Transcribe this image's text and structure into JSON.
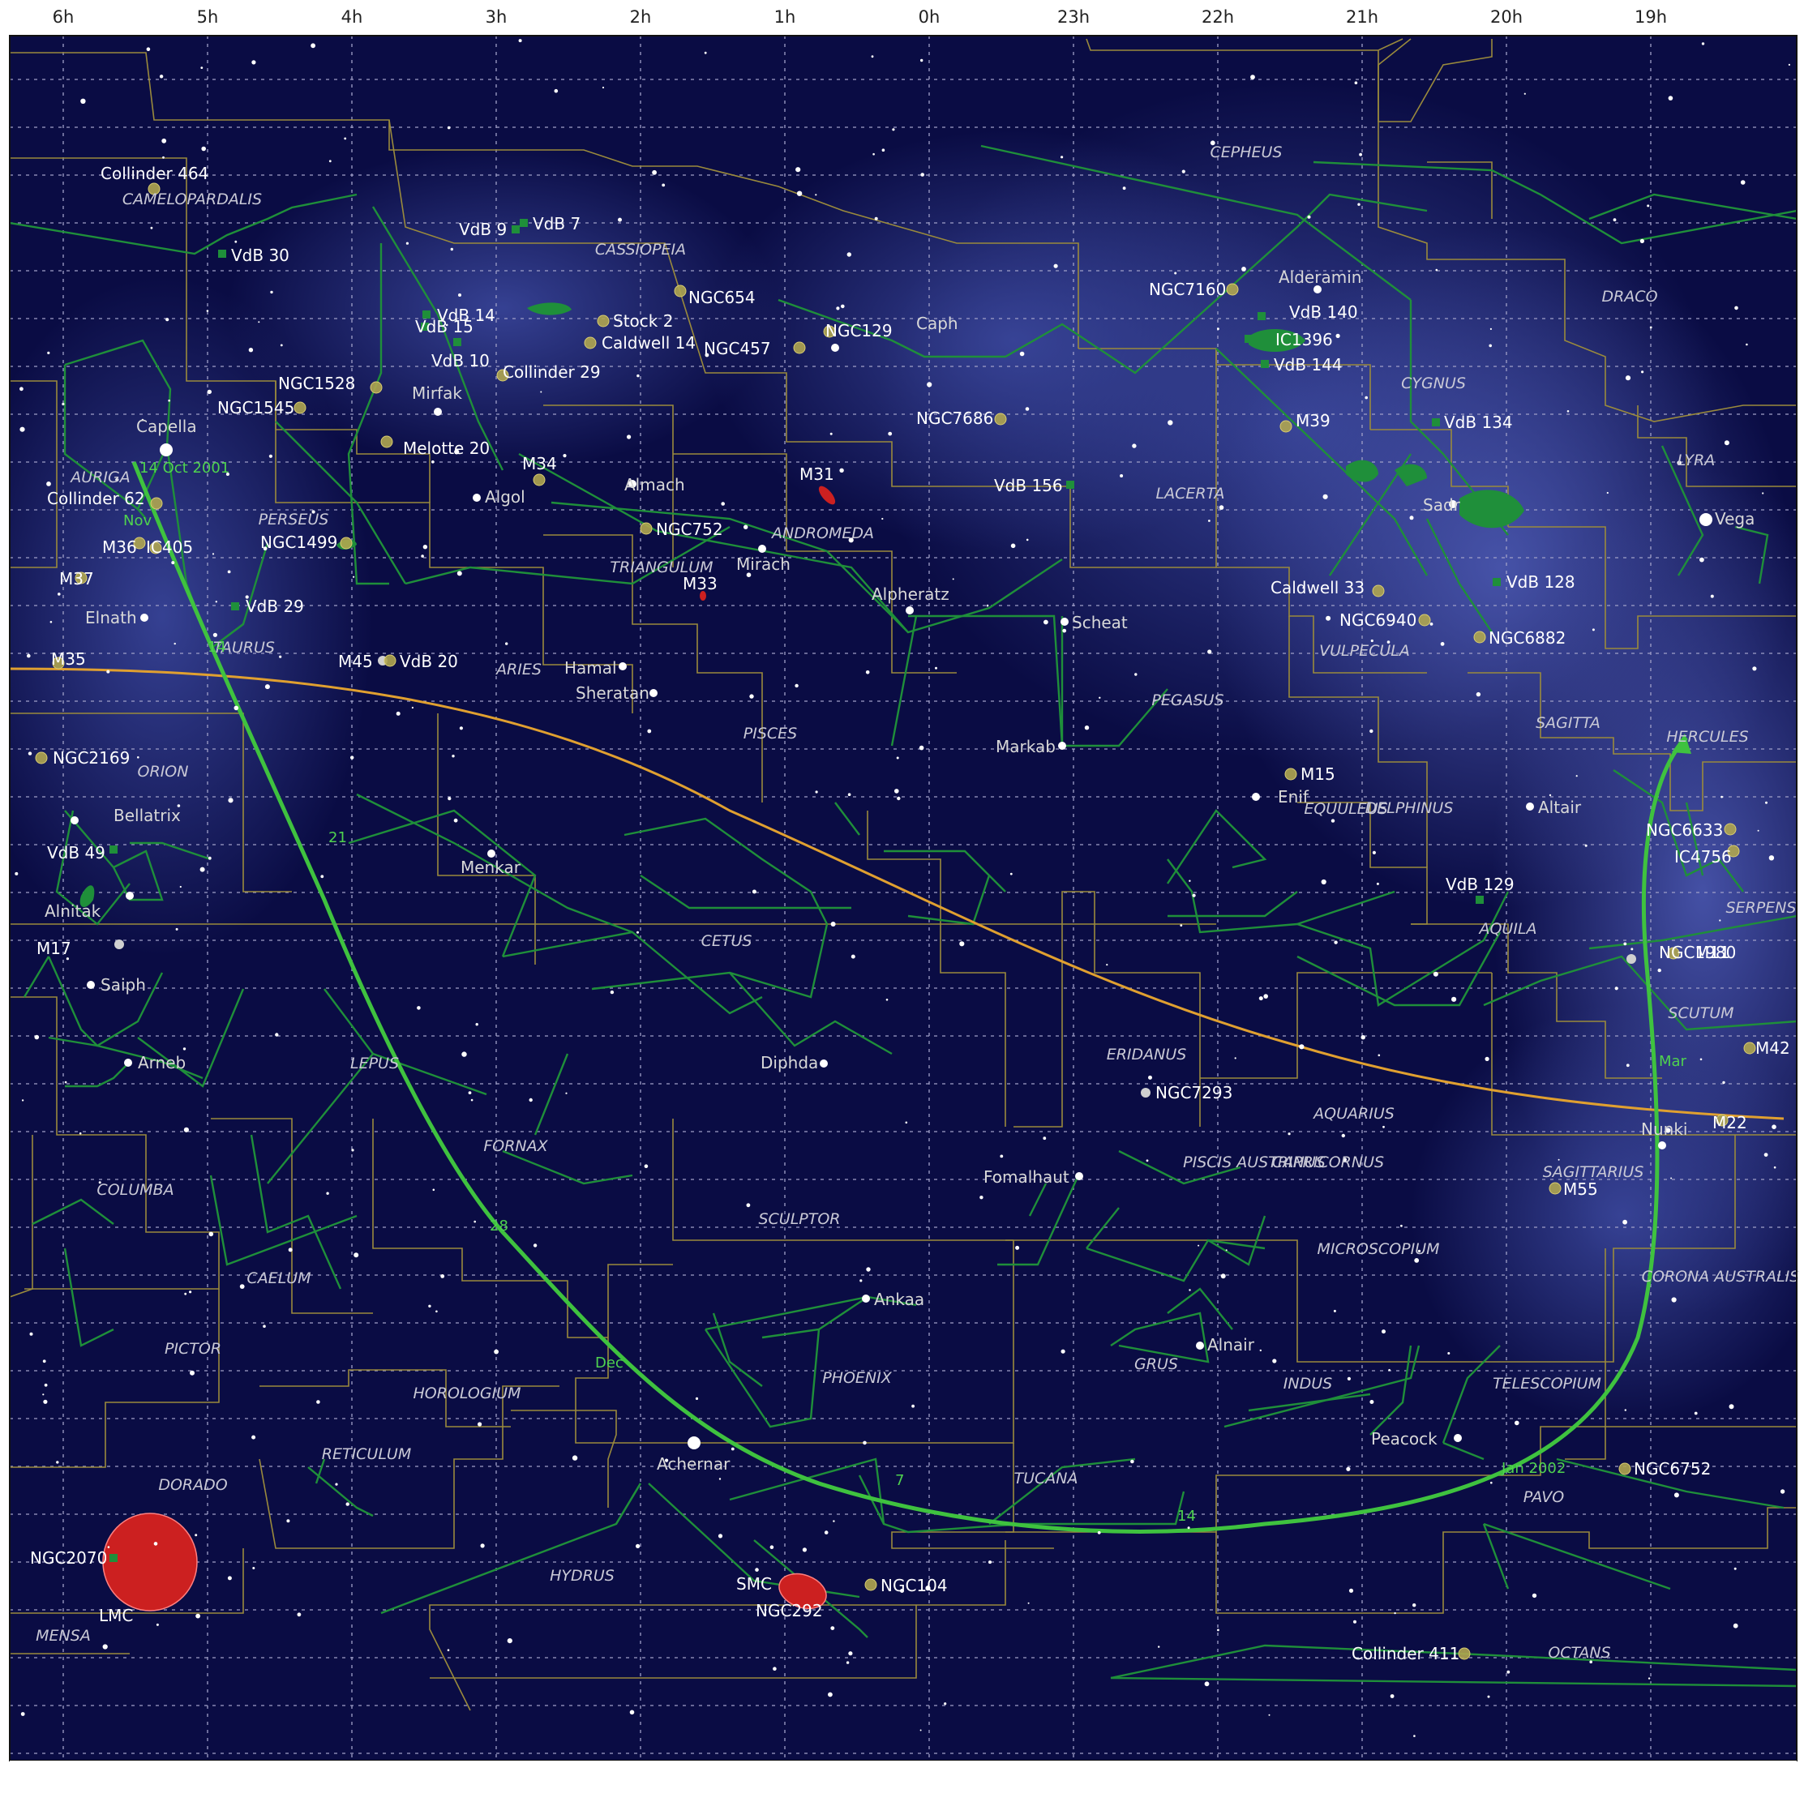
{
  "colors": {
    "sky": "#0a0c44",
    "milky_way": "#3a4699",
    "grid": "#a0a0c8",
    "boundary": "#9a8a3c",
    "figure": "#1f8f3a",
    "star": "#ffffff",
    "cluster": "#b0a650",
    "nebula": "#1f8f3a",
    "galaxy": "#cc2020",
    "ecliptic": "#e0a030",
    "comet_path": "#3fc23f"
  },
  "ra_labels": [
    "6h",
    "5h",
    "4h",
    "3h",
    "2h",
    "1h",
    "0h",
    "23h",
    "22h",
    "21h",
    "20h",
    "19h"
  ],
  "constellations": [
    "CEPHEUS",
    "CAMELOPARDALIS",
    "CASSIOPEIA",
    "DRACO",
    "CYGNUS",
    "LYRA",
    "PERSEUS",
    "AURIGA",
    "ANDROMEDA",
    "LACERTA",
    "TRIANGULUM",
    "TAURUS",
    "ARIES",
    "PISCES",
    "PEGASUS",
    "VULPECULA",
    "SAGITTA",
    "HERCULES",
    "ORION",
    "EQUULEUS",
    "DELPHINUS",
    "AQUILA",
    "SERPENS",
    "CETUS",
    "SCUTUM",
    "LEPUS",
    "ERIDANUS",
    "AQUARIUS",
    "CAPRICORNUS",
    "FORNAX",
    "PISCIS AUSTRINUS",
    "SAGITTARIUS",
    "COLUMBA",
    "SCULPTOR",
    "MICROSCOPIUM",
    "CAELUM",
    "CORONA AUSTRALIS",
    "PICTOR",
    "PHOENIX",
    "GRUS",
    "INDUS",
    "TELESCOPIUM",
    "HOROLOGIUM",
    "RETICULUM",
    "TUCANA",
    "DORADO",
    "PAVO",
    "HYDRUS",
    "MENSA",
    "OCTANS"
  ],
  "labels": {
    "stars": [
      "Capella",
      "Mirfak",
      "Algol",
      "Almach",
      "Mirach",
      "Alpheratz",
      "Caph",
      "Scheat",
      "Markab",
      "Enif",
      "Alderamin",
      "Sadr",
      "Vega",
      "Altair",
      "Elnath",
      "Bellatrix",
      "Alnitak",
      "Saiph",
      "Arneb",
      "Hamal",
      "Sheratan",
      "Menkar",
      "Diphda",
      "Fomalhaut",
      "Ankaa",
      "Achernar",
      "Alnair",
      "Peacock",
      "Nunki"
    ],
    "deep_sky": [
      "Collinder 464",
      "VdB 9",
      "VdB 7",
      "VdB 30",
      "VdB 14",
      "VdB 15",
      "VdB 10",
      "Stock 2",
      "Caldwell 14",
      "Collinder 29",
      "NGC654",
      "NGC457",
      "NGC129",
      "NGC7160",
      "VdB 140",
      "IC1396",
      "VdB 144",
      "NGC1528",
      "NGC1545",
      "Melotte 20",
      "M34",
      "M31",
      "NGC7686",
      "M39",
      "VdB 134",
      "VdB 156",
      "NGC752",
      "M33",
      "Collinder 62",
      "M36",
      "IC405",
      "M37",
      "NGC1499",
      "VdB 29",
      "Caldwell 33",
      "VdB 128",
      "NGC6940",
      "NGC6882",
      "M35",
      "M45",
      "VdB 20",
      "NGC2169",
      "M15",
      "NGC6633",
      "IC4756",
      "VdB 49",
      "VdB 129",
      "M11",
      "NGC1980",
      "M42",
      "M17",
      "NGC7293",
      "M22",
      "M55",
      "NGC2070",
      "LMC",
      "SMC",
      "NGC292",
      "NGC104",
      "NGC6752",
      "Collinder 411"
    ]
  },
  "comet_path_labels": [
    "14 Oct 2001",
    "Nov",
    "14",
    "21",
    "28",
    "Dec",
    "7",
    "14",
    "Jan 2002",
    "Mar"
  ]
}
